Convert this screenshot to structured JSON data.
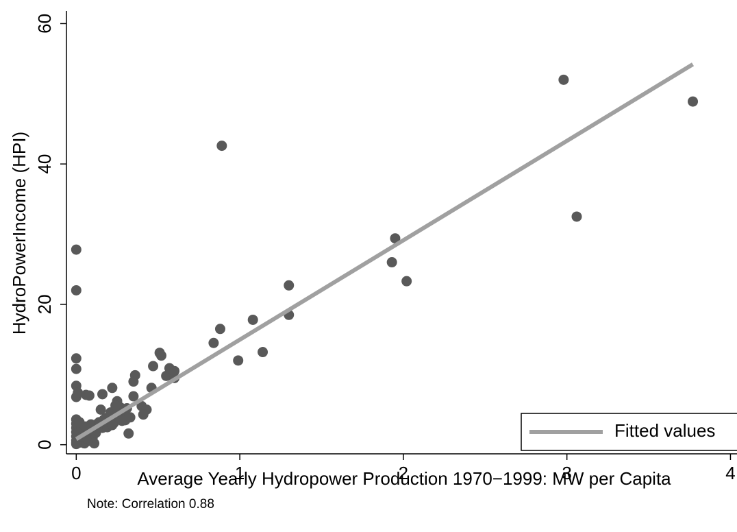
{
  "chart_data": {
    "type": "scatter",
    "x_label": "Average Yearly Hydropower Production 1970−1999: MW per Capita",
    "y_label": "HydroPowerIncome (HPI)",
    "note": "Note: Correlation 0.88",
    "xlim": [
      -0.06,
      4.04
    ],
    "ylim": [
      -1.3,
      61.8
    ],
    "xticks": [
      0,
      1,
      2,
      3,
      4
    ],
    "yticks": [
      0,
      20,
      40,
      60
    ],
    "legend": "bottom-right",
    "series": [
      {
        "type": "scatter",
        "color": "#595959",
        "x": [
          2.98,
          3.77,
          0.89,
          3.06,
          1.95,
          1.93,
          2.02,
          1.3,
          1.3,
          1.08,
          0.88,
          0.84,
          1.14,
          0.99,
          0.0,
          0.0,
          0.0,
          0.0,
          0.0,
          0.0,
          0.01,
          0.06,
          0.08,
          0.16,
          0.22,
          0.36,
          0.35,
          0.47,
          0.51,
          0.52,
          0.55,
          0.57,
          0.6,
          0.6,
          0.46,
          0.35,
          0.4,
          0.43,
          0.41,
          0.32,
          0.3,
          0.25,
          0.27,
          0.2,
          0.15,
          0.13,
          0.1,
          0.11,
          0.0,
          0.0,
          0.0,
          0.0,
          0.0,
          0.0,
          0.0,
          0.01,
          0.02,
          0.02,
          0.03,
          0.03,
          0.04,
          0.05,
          0.05,
          0.06,
          0.07,
          0.08,
          0.09,
          0.1,
          0.12,
          0.14,
          0.16,
          0.18,
          0.19,
          0.21,
          0.23,
          0.24,
          0.26,
          0.28,
          0.29,
          0.31,
          0.33,
          0.02,
          0.04,
          0.06,
          0.0,
          0.01,
          0.03,
          0.17,
          0.22,
          0.25
        ],
        "y": [
          52.0,
          48.9,
          42.6,
          32.5,
          29.4,
          26.0,
          23.3,
          22.7,
          18.5,
          17.8,
          16.5,
          14.5,
          13.2,
          12.0,
          27.8,
          22.0,
          12.3,
          10.8,
          8.4,
          6.8,
          7.4,
          7.1,
          7.0,
          7.2,
          8.1,
          9.9,
          9.0,
          11.2,
          13.1,
          12.7,
          9.8,
          10.9,
          10.5,
          9.5,
          8.1,
          6.9,
          5.5,
          5.0,
          4.3,
          1.6,
          3.5,
          6.2,
          5.3,
          4.0,
          5.0,
          3.0,
          1.0,
          0.2,
          3.6,
          3.0,
          2.4,
          1.8,
          1.2,
          0.6,
          0.1,
          2.8,
          1.5,
          0.3,
          2.2,
          0.8,
          1.9,
          1.1,
          0.2,
          2.6,
          0.5,
          1.4,
          2.9,
          2.0,
          1.7,
          3.2,
          2.4,
          3.8,
          2.5,
          4.6,
          3.1,
          5.6,
          4.2,
          3.4,
          4.8,
          5.2,
          3.9,
          3.2,
          0.4,
          0.9,
          0.3,
          1.6,
          1.2,
          3.6,
          2.8,
          4.4
        ]
      },
      {
        "type": "line",
        "name": "Fitted values",
        "color": "#a0a0a0",
        "x": [
          0,
          3.77
        ],
        "y": [
          0.8,
          54.2
        ]
      }
    ]
  }
}
